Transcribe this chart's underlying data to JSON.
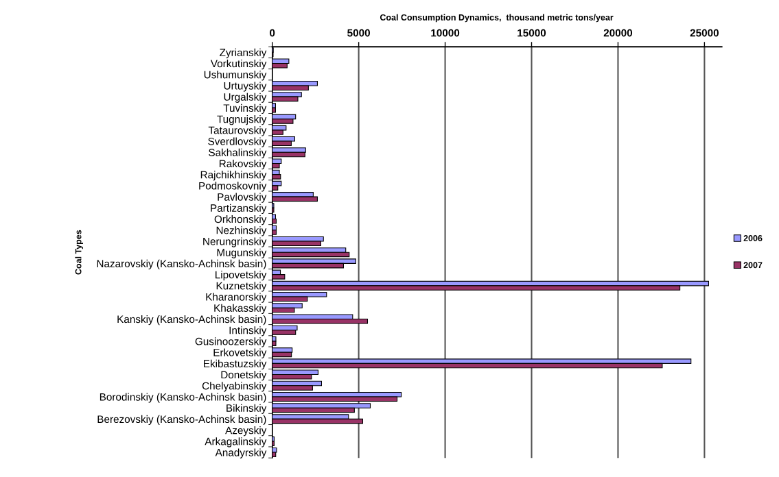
{
  "chart_data": {
    "type": "bar",
    "orientation": "horizontal",
    "title": "Coal Consumption Dynamics,  thousand metric tons/year",
    "ylabel": "Coal Types",
    "categories": [
      "Zyrianskiy",
      "Vorkutinskiy",
      "Ushumunskiy",
      "Urtuyskiy",
      "Urgalskiy",
      "Tuvinskiy",
      "Tugnujskiy",
      "Tataurovskiy",
      "Sverdlovskiy",
      "Sakhalinskiy",
      "Rakovskiy",
      "Rajchikhinskiy",
      "Podmoskovniy",
      "Pavlovskiy",
      "Partizanskiy",
      "Orkhonskiy",
      "Nezhinskiy",
      "Nerungrinskiy",
      "Mugunskiy",
      "Nazarovskiy (Kansko-Achinsk basin)",
      "Lipovetskiy",
      "Kuznetskiy",
      "Kharanorskiy",
      "Khakasskiy",
      "Kanskiy (Kansko-Achinsk basin)",
      "Intinskiy",
      "Gusinoozerskiy",
      "Erkovetskiy",
      "Ekibastuzskiy",
      "Donetskiy",
      "Chelyabinskiy",
      "Borodinskiy (Kansko-Achinsk basin)",
      "Bikinskiy",
      "Berezovskiy (Kansko-Achinsk basin)",
      "Azeyskiy",
      "Arkagalinskiy",
      "Anadyrskiy"
    ],
    "series": [
      {
        "name": "2006",
        "color": "#9999ff",
        "values": [
          60,
          960,
          null,
          2610,
          1690,
          190,
          1350,
          800,
          1300,
          1930,
          520,
          410,
          520,
          2370,
          90,
          190,
          230,
          2960,
          4250,
          4830,
          470,
          25240,
          3140,
          1730,
          4650,
          1440,
          210,
          1150,
          24220,
          2650,
          2850,
          7460,
          5670,
          4410,
          null,
          110,
          250
        ]
      },
      {
        "name": "2007",
        "color": "#993366",
        "values": [
          50,
          860,
          null,
          2090,
          1480,
          190,
          1200,
          620,
          1100,
          1890,
          410,
          480,
          320,
          2610,
          90,
          230,
          230,
          2810,
          4450,
          4120,
          720,
          23580,
          2030,
          1280,
          5510,
          1350,
          210,
          1110,
          22560,
          2270,
          2330,
          7220,
          4750,
          5230,
          null,
          110,
          200
        ]
      }
    ],
    "xlim": [
      0,
      26000
    ],
    "xticks": [
      0,
      5000,
      10000,
      15000,
      20000,
      25000
    ],
    "grid": "x",
    "legend": "right"
  }
}
